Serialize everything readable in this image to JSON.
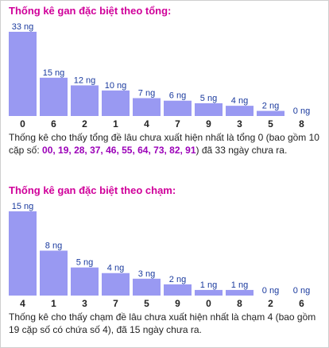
{
  "chart_data": [
    {
      "type": "bar",
      "title": "Thống kê gan đặc biệt theo tổng:",
      "categories": [
        "0",
        "6",
        "2",
        "1",
        "4",
        "7",
        "9",
        "3",
        "5",
        "8"
      ],
      "values": [
        33,
        15,
        12,
        10,
        7,
        6,
        5,
        4,
        2,
        0
      ],
      "value_suffix": " ng",
      "ylim": [
        0,
        33
      ],
      "grid": false,
      "colors": {
        "bar": "#9999f2",
        "label": "#1a3a9e",
        "tick": "#222222"
      }
    },
    {
      "type": "bar",
      "title": "Thống kê gan đặc biệt theo chạm:",
      "categories": [
        "4",
        "1",
        "3",
        "7",
        "5",
        "9",
        "0",
        "8",
        "2",
        "6"
      ],
      "values": [
        15,
        8,
        5,
        4,
        3,
        2,
        1,
        1,
        0,
        0
      ],
      "value_suffix": " ng",
      "ylim": [
        0,
        15
      ],
      "grid": false,
      "colors": {
        "bar": "#9999f2",
        "label": "#1a3a9e",
        "tick": "#222222"
      }
    }
  ],
  "sections": {
    "tong": {
      "desc_pre": "Thống kê cho thấy tổng đề lâu chưa xuất hiện nhất là tổng 0 (bao gồm 10 cặp số: ",
      "desc_nums": "00, 19, 28, 37, 46, 55, 64, 73, 82, 91",
      "desc_post": ") đã 33 ngày chưa ra."
    },
    "cham": {
      "desc": "Thống kê cho thấy chạm đề lâu chưa xuất hiện nhất là chạm 4 (bao gồm 19 cặp số có chứa số 4), đã 15 ngày chưa ra."
    }
  },
  "colors": {
    "heading": "#d0009a",
    "highlight": "#9b00b8",
    "text": "#222222"
  }
}
